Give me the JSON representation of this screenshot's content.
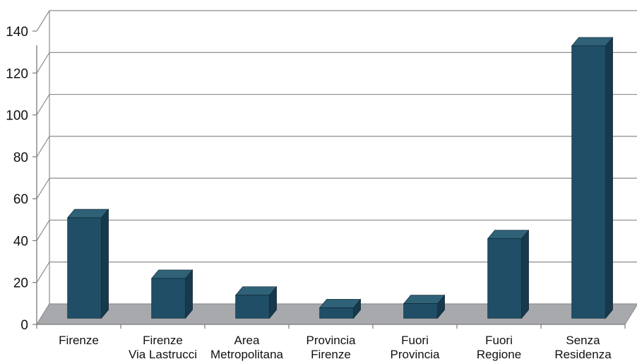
{
  "chart_data": {
    "type": "bar",
    "title": "",
    "xlabel": "",
    "ylabel": "",
    "categories": [
      [
        "Firenze"
      ],
      [
        "Firenze",
        "Via Lastrucci"
      ],
      [
        "Area",
        "Metropolitana"
      ],
      [
        "Provincia",
        "Firenze"
      ],
      [
        "Fuori",
        "Provincia"
      ],
      [
        "Fuori",
        "Regione"
      ],
      [
        "Senza",
        "Residenza"
      ]
    ],
    "values": [
      48,
      19,
      11,
      5,
      7,
      38,
      130
    ],
    "ylim": [
      0,
      140
    ],
    "yticks": [
      0,
      20,
      40,
      60,
      80,
      100,
      120,
      140
    ],
    "grid": true,
    "style": "3d",
    "colors": {
      "bar_front": "#1f4e66",
      "bar_top": "#2f6177",
      "bar_side": "#163a4c",
      "floor": "#a7a9ad",
      "grid": "#8c8c8c"
    }
  }
}
